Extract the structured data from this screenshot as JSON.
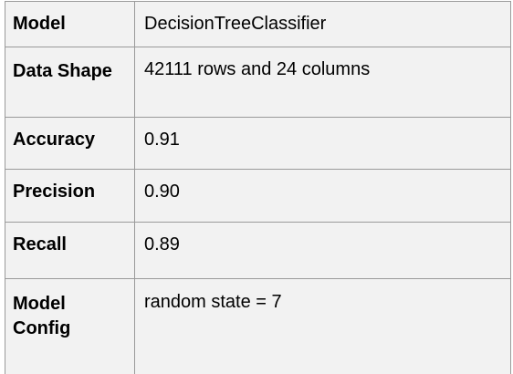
{
  "table": {
    "rows": [
      {
        "label": "Model",
        "value": "DecisionTreeClassifier"
      },
      {
        "label": "Data Shape",
        "value": "42111 rows and 24 columns"
      },
      {
        "label": "Accuracy",
        "value": "0.91"
      },
      {
        "label": "Precision",
        "value": "0.90"
      },
      {
        "label": "Recall",
        "value": "0.89"
      },
      {
        "label": "Model Config",
        "value": "random state = 7"
      }
    ]
  },
  "colors": {
    "cell_background": "#f2f2f2",
    "border": "#9a9a9a",
    "text": "#000000"
  }
}
